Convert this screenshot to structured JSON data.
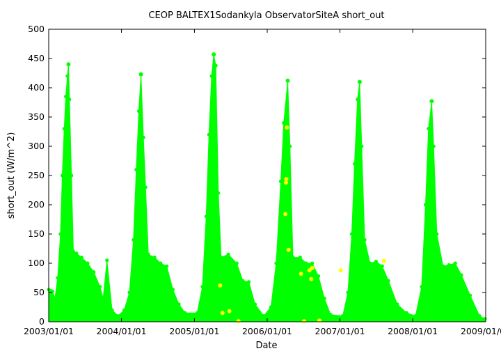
{
  "chart_data": {
    "type": "scatter",
    "title": "CEOP BALTEX1Sodankyla ObservatorSiteA  short_out",
    "xlabel": "Date",
    "ylabel": "short_out (W/m^2)",
    "ylim": [
      0,
      500
    ],
    "xlim": [
      "2003-01-01",
      "2009-01-01"
    ],
    "yticks": [
      0,
      50,
      100,
      150,
      200,
      250,
      300,
      350,
      400,
      450,
      500
    ],
    "xticks": [
      "2003/01/01",
      "2004/01/01",
      "2005/01/01",
      "2006/01/01",
      "2007/01/01",
      "2008/01/01",
      "2009/01/01"
    ],
    "grid": false,
    "legend": "none",
    "colors": {
      "main": "#00ff00",
      "flagged": "#ffff00",
      "axes": "#000000"
    },
    "series": [
      {
        "color": "#00ff00",
        "seasonal_peaks": [
          {
            "date": "2003-04-10",
            "value": 440
          },
          {
            "date": "2004-04-08",
            "value": 423
          },
          {
            "date": "2005-04-08",
            "value": 457
          },
          {
            "date": "2006-04-14",
            "value": 412
          },
          {
            "date": "2007-04-10",
            "value": 410
          },
          {
            "date": "2008-04-05",
            "value": 377
          }
        ],
        "points": [
          [
            "2003-01-01",
            55
          ],
          [
            "2003-01-10",
            53
          ],
          [
            "2003-01-20",
            52
          ],
          [
            "2003-02-01",
            40
          ],
          [
            "2003-02-15",
            75
          ],
          [
            "2003-03-01",
            150
          ],
          [
            "2003-03-10",
            250
          ],
          [
            "2003-03-20",
            330
          ],
          [
            "2003-03-28",
            385
          ],
          [
            "2003-04-05",
            420
          ],
          [
            "2003-04-10",
            440
          ],
          [
            "2003-04-15",
            380
          ],
          [
            "2003-04-25",
            250
          ],
          [
            "2003-05-05",
            120
          ],
          [
            "2003-05-20",
            117
          ],
          [
            "2003-06-15",
            110
          ],
          [
            "2003-07-15",
            100
          ],
          [
            "2003-08-15",
            85
          ],
          [
            "2003-09-15",
            60
          ],
          [
            "2003-10-01",
            40
          ],
          [
            "2003-10-20",
            105
          ],
          [
            "2003-11-15",
            20
          ],
          [
            "2003-12-15",
            10
          ],
          [
            "2004-01-15",
            20
          ],
          [
            "2004-02-10",
            50
          ],
          [
            "2004-03-01",
            140
          ],
          [
            "2004-03-15",
            260
          ],
          [
            "2004-03-28",
            360
          ],
          [
            "2004-04-08",
            423
          ],
          [
            "2004-04-20",
            315
          ],
          [
            "2004-05-01",
            230
          ],
          [
            "2004-05-15",
            115
          ],
          [
            "2004-06-15",
            110
          ],
          [
            "2004-07-15",
            100
          ],
          [
            "2004-08-15",
            95
          ],
          [
            "2004-09-15",
            55
          ],
          [
            "2004-10-15",
            30
          ],
          [
            "2004-11-15",
            15
          ],
          [
            "2005-01-15",
            15
          ],
          [
            "2005-02-10",
            60
          ],
          [
            "2005-03-01",
            180
          ],
          [
            "2005-03-15",
            320
          ],
          [
            "2005-03-28",
            420
          ],
          [
            "2005-04-08",
            457
          ],
          [
            "2005-04-18",
            438
          ],
          [
            "2005-05-01",
            220
          ],
          [
            "2005-05-15",
            110
          ],
          [
            "2005-06-20",
            115
          ],
          [
            "2005-08-01",
            100
          ],
          [
            "2005-09-01",
            70
          ],
          [
            "2005-10-01",
            68
          ],
          [
            "2005-11-01",
            30
          ],
          [
            "2005-12-15",
            10
          ],
          [
            "2006-01-20",
            25
          ],
          [
            "2006-02-15",
            100
          ],
          [
            "2006-03-10",
            240
          ],
          [
            "2006-03-25",
            340
          ],
          [
            "2006-04-14",
            412
          ],
          [
            "2006-04-25",
            300
          ],
          [
            "2006-05-10",
            110
          ],
          [
            "2006-06-15",
            110
          ],
          [
            "2006-07-15",
            100
          ],
          [
            "2006-08-15",
            100
          ],
          [
            "2006-09-15",
            78
          ],
          [
            "2006-10-15",
            40
          ],
          [
            "2006-11-15",
            12
          ],
          [
            "2007-01-15",
            10
          ],
          [
            "2007-02-10",
            50
          ],
          [
            "2007-03-01",
            150
          ],
          [
            "2007-03-15",
            270
          ],
          [
            "2007-03-30",
            380
          ],
          [
            "2007-04-10",
            410
          ],
          [
            "2007-04-20",
            300
          ],
          [
            "2007-05-05",
            140
          ],
          [
            "2007-06-01",
            100
          ],
          [
            "2007-07-01",
            103
          ],
          [
            "2007-08-01",
            95
          ],
          [
            "2007-09-01",
            70
          ],
          [
            "2007-10-15",
            30
          ],
          [
            "2007-12-01",
            15
          ],
          [
            "2008-01-15",
            10
          ],
          [
            "2008-02-15",
            60
          ],
          [
            "2008-03-05",
            200
          ],
          [
            "2008-03-20",
            330
          ],
          [
            "2008-04-05",
            377
          ],
          [
            "2008-04-15",
            300
          ],
          [
            "2008-05-01",
            150
          ],
          [
            "2008-06-01",
            95
          ],
          [
            "2008-07-01",
            97
          ],
          [
            "2008-08-01",
            100
          ],
          [
            "2008-09-01",
            80
          ],
          [
            "2008-10-15",
            45
          ],
          [
            "2008-12-01",
            10
          ],
          [
            "2008-12-28",
            5
          ]
        ]
      },
      {
        "color": "#ffff00",
        "points": [
          [
            "2005-05-10",
            62
          ],
          [
            "2005-05-22",
            15
          ],
          [
            "2005-06-25",
            18
          ],
          [
            "2005-08-10",
            1
          ],
          [
            "2006-04-02",
            184
          ],
          [
            "2006-04-05",
            238
          ],
          [
            "2006-04-07",
            244
          ],
          [
            "2006-04-10",
            332
          ],
          [
            "2006-04-18",
            123
          ],
          [
            "2006-06-20",
            82
          ],
          [
            "2006-07-05",
            1
          ],
          [
            "2006-08-01",
            88
          ],
          [
            "2006-08-10",
            73
          ],
          [
            "2006-08-15",
            92
          ],
          [
            "2006-09-20",
            2
          ],
          [
            "2007-01-05",
            88
          ],
          [
            "2007-08-10",
            104
          ]
        ]
      }
    ]
  }
}
